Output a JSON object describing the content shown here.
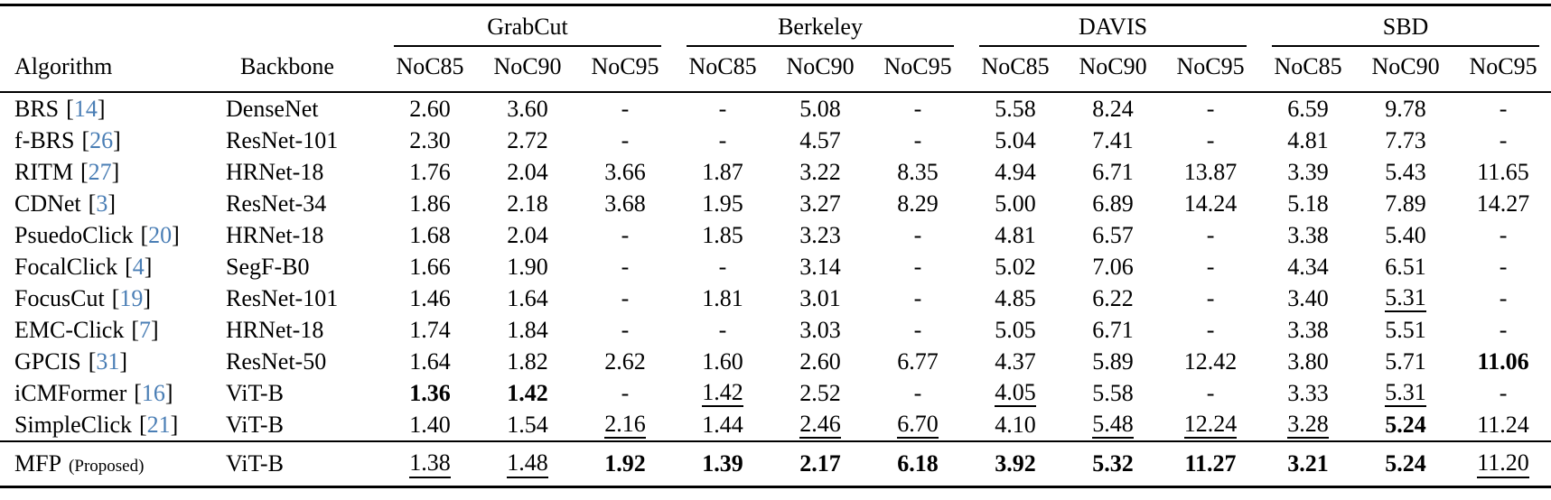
{
  "table": {
    "left_headers": [
      "Algorithm",
      "Backbone"
    ],
    "col_groups": [
      {
        "label": "GrabCut"
      },
      {
        "label": "Berkeley"
      },
      {
        "label": "DAVIS"
      },
      {
        "label": "SBD"
      }
    ],
    "sub_headers": [
      "NoC85",
      "NoC90",
      "NoC95"
    ],
    "citation_brackets": [
      "[",
      "]"
    ],
    "rows": [
      {
        "algorithm": "BRS",
        "citation": "14",
        "backbone": "DenseNet",
        "values": [
          "2.60",
          "3.60",
          "-",
          "-",
          "5.08",
          "-",
          "5.58",
          "8.24",
          "-",
          "6.59",
          "9.78",
          "-"
        ],
        "styles": [
          "",
          "",
          "",
          "",
          "",
          "",
          "",
          "",
          "",
          "",
          "",
          ""
        ]
      },
      {
        "algorithm": "f-BRS",
        "citation": "26",
        "backbone": "ResNet-101",
        "values": [
          "2.30",
          "2.72",
          "-",
          "-",
          "4.57",
          "-",
          "5.04",
          "7.41",
          "-",
          "4.81",
          "7.73",
          "-"
        ],
        "styles": [
          "",
          "",
          "",
          "",
          "",
          "",
          "",
          "",
          "",
          "",
          "",
          ""
        ]
      },
      {
        "algorithm": "RITM",
        "citation": "27",
        "backbone": "HRNet-18",
        "values": [
          "1.76",
          "2.04",
          "3.66",
          "1.87",
          "3.22",
          "8.35",
          "4.94",
          "6.71",
          "13.87",
          "3.39",
          "5.43",
          "11.65"
        ],
        "styles": [
          "",
          "",
          "",
          "",
          "",
          "",
          "",
          "",
          "",
          "",
          "",
          ""
        ]
      },
      {
        "algorithm": "CDNet",
        "citation": "3",
        "backbone": "ResNet-34",
        "values": [
          "1.86",
          "2.18",
          "3.68",
          "1.95",
          "3.27",
          "8.29",
          "5.00",
          "6.89",
          "14.24",
          "5.18",
          "7.89",
          "14.27"
        ],
        "styles": [
          "",
          "",
          "",
          "",
          "",
          "",
          "",
          "",
          "",
          "",
          "",
          ""
        ]
      },
      {
        "algorithm": "PsuedoClick",
        "citation": "20",
        "backbone": "HRNet-18",
        "values": [
          "1.68",
          "2.04",
          "-",
          "1.85",
          "3.23",
          "-",
          "4.81",
          "6.57",
          "-",
          "3.38",
          "5.40",
          "-"
        ],
        "styles": [
          "",
          "",
          "",
          "",
          "",
          "",
          "",
          "",
          "",
          "",
          "",
          ""
        ]
      },
      {
        "algorithm": "FocalClick",
        "citation": "4",
        "backbone": "SegF-B0",
        "values": [
          "1.66",
          "1.90",
          "-",
          "-",
          "3.14",
          "-",
          "5.02",
          "7.06",
          "-",
          "4.34",
          "6.51",
          "-"
        ],
        "styles": [
          "",
          "",
          "",
          "",
          "",
          "",
          "",
          "",
          "",
          "",
          "",
          ""
        ]
      },
      {
        "algorithm": "FocusCut",
        "citation": "19",
        "backbone": "ResNet-101",
        "values": [
          "1.46",
          "1.64",
          "-",
          "1.81",
          "3.01",
          "-",
          "4.85",
          "6.22",
          "-",
          "3.40",
          "5.31",
          "-"
        ],
        "styles": [
          "",
          "",
          "",
          "",
          "",
          "",
          "",
          "",
          "",
          "",
          "u",
          ""
        ]
      },
      {
        "algorithm": "EMC-Click",
        "citation": "7",
        "backbone": "HRNet-18",
        "values": [
          "1.74",
          "1.84",
          "-",
          "-",
          "3.03",
          "-",
          "5.05",
          "6.71",
          "-",
          "3.38",
          "5.51",
          "-"
        ],
        "styles": [
          "",
          "",
          "",
          "",
          "",
          "",
          "",
          "",
          "",
          "",
          "",
          ""
        ]
      },
      {
        "algorithm": "GPCIS",
        "citation": "31",
        "backbone": "ResNet-50",
        "values": [
          "1.64",
          "1.82",
          "2.62",
          "1.60",
          "2.60",
          "6.77",
          "4.37",
          "5.89",
          "12.42",
          "3.80",
          "5.71",
          "11.06"
        ],
        "styles": [
          "",
          "",
          "",
          "",
          "",
          "",
          "",
          "",
          "",
          "",
          "",
          "b"
        ]
      },
      {
        "algorithm": "iCMFormer",
        "citation": "16",
        "backbone": "ViT-B",
        "values": [
          "1.36",
          "1.42",
          "-",
          "1.42",
          "2.52",
          "-",
          "4.05",
          "5.58",
          "-",
          "3.33",
          "5.31",
          "-"
        ],
        "styles": [
          "b",
          "b",
          "",
          "u",
          "",
          "",
          "u",
          "",
          "",
          "",
          "u",
          ""
        ]
      },
      {
        "algorithm": "SimpleClick",
        "citation": "21",
        "backbone": "ViT-B",
        "values": [
          "1.40",
          "1.54",
          "2.16",
          "1.44",
          "2.46",
          "6.70",
          "4.10",
          "5.48",
          "12.24",
          "3.28",
          "5.24",
          "11.24"
        ],
        "styles": [
          "",
          "",
          "u",
          "",
          "u",
          "u",
          "",
          "u",
          "u",
          "u",
          "b",
          ""
        ]
      },
      {
        "algorithm": "MFP",
        "citation": "",
        "note": "(Proposed)",
        "backbone": "ViT-B",
        "values": [
          "1.38",
          "1.48",
          "1.92",
          "1.39",
          "2.17",
          "6.18",
          "3.92",
          "5.32",
          "11.27",
          "3.21",
          "5.24",
          "11.20"
        ],
        "styles": [
          "u",
          "u",
          "b",
          "b",
          "b",
          "b",
          "b",
          "b",
          "b",
          "b",
          "b",
          "u"
        ]
      }
    ]
  },
  "colors": {
    "citation_link": "#4a7eb5",
    "text": "#000000",
    "background": "#ffffff"
  }
}
